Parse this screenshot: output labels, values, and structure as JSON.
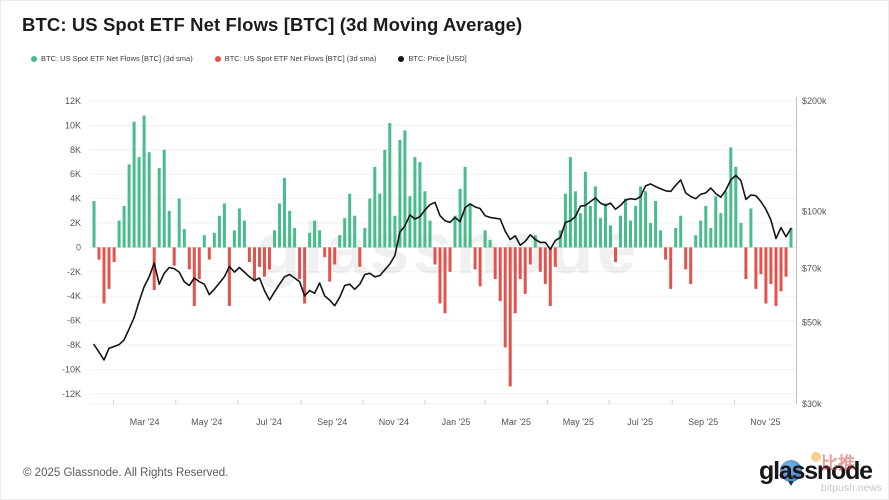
{
  "header": {
    "title": "BTC: US Spot ETF Net Flows [BTC] (3d Moving Average)",
    "legend": [
      {
        "label": "BTC: US Spot ETF Net Flows [BTC] (3d sma)",
        "color": "#48bd8b"
      },
      {
        "label": "BTC: US Spot ETF Net Flows [BTC] (3d sma)",
        "color": "#e2534d"
      },
      {
        "label": "BTC: Price [USD]",
        "color": "#141414"
      }
    ]
  },
  "watermark": "glassnode",
  "footer": {
    "copyright": "© 2025 Glassnode. All Rights Reserved.",
    "logo_text": "glassnode",
    "overlay_cn": "比推",
    "overlay_site": "bitpush.news"
  },
  "colors": {
    "flow_pos": "#48bd8b",
    "flow_neg": "#e2534d",
    "price_line": "#141414",
    "grid": "#f1f1f1",
    "zero_line": "#e2e2e2",
    "spine": "#bfbfbf",
    "axis_text": "#55555a"
  },
  "chart_data": {
    "type": "bar+line",
    "title": "BTC: US Spot ETF Net Flows [BTC] (3d Moving Average)",
    "series": [
      {
        "name": "BTC: US Spot ETF Net Flows [BTC] (3d sma) — positive",
        "type": "bar",
        "axis": "left",
        "unit": "K BTC"
      },
      {
        "name": "BTC: US Spot ETF Net Flows [BTC] (3d sma) — negative",
        "type": "bar",
        "axis": "left",
        "unit": "K BTC"
      },
      {
        "name": "BTC: Price [USD]",
        "type": "line",
        "axis": "right",
        "unit": "USD (thousands)",
        "scale": "log"
      }
    ],
    "x_ticks": [
      {
        "label": "Mar '24",
        "i": 10.1
      },
      {
        "label": "May '24",
        "i": 22.5
      },
      {
        "label": "Jul '24",
        "i": 34.9
      },
      {
        "label": "Sep '24",
        "i": 47.5
      },
      {
        "label": "Nov '24",
        "i": 59.8
      },
      {
        "label": "Jan '25",
        "i": 72.2
      },
      {
        "label": "Mar '25",
        "i": 84.2
      },
      {
        "label": "May '25",
        "i": 96.6
      },
      {
        "label": "Jul '25",
        "i": 108.9
      },
      {
        "label": "Sep '25",
        "i": 121.5
      },
      {
        "label": "Nov '25",
        "i": 133.9
      }
    ],
    "y_axis_left": [
      {
        "label": "12K",
        "value": 12
      },
      {
        "label": "10K",
        "value": 10
      },
      {
        "label": "8K",
        "value": 8
      },
      {
        "label": "6K",
        "value": 6
      },
      {
        "label": "4K",
        "value": 4
      },
      {
        "label": "2K",
        "value": 2
      },
      {
        "label": "0",
        "value": 0
      },
      {
        "label": "-2K",
        "value": -2
      },
      {
        "label": "-4K",
        "value": -4
      },
      {
        "label": "-6K",
        "value": -6
      },
      {
        "label": "-8K",
        "value": -8
      },
      {
        "label": "-10K",
        "value": -10
      },
      {
        "label": "-12K",
        "value": -12
      }
    ],
    "y_axis_right": [
      {
        "label": "$200k",
        "value": 200
      },
      {
        "label": "$100k",
        "value": 100
      },
      {
        "label": "$70k",
        "value": 70
      },
      {
        "label": "$50k",
        "value": 50
      },
      {
        "label": "$30k",
        "value": 30
      }
    ],
    "y_left_range_kbtc": [
      -12,
      12
    ],
    "y_right_scale": "log",
    "grid": "horizontal-only",
    "legend_position": "top-left",
    "flows_3d_sma_kbtc": [
      3.8,
      -1.0,
      -4.6,
      -3.4,
      -1.2,
      2.2,
      3.4,
      6.8,
      10.3,
      7.4,
      10.8,
      7.8,
      -3.5,
      6.5,
      8.0,
      3.0,
      -1.5,
      4.0,
      1.5,
      -1.8,
      -4.8,
      -2.6,
      1.0,
      -1.0,
      1.2,
      2.6,
      3.6,
      -4.8,
      1.4,
      3.2,
      2.2,
      -1.2,
      -2.8,
      -1.6,
      -2.4,
      -1.8,
      1.4,
      3.6,
      5.7,
      3.0,
      1.6,
      -2.6,
      -4.6,
      1.2,
      2.2,
      1.4,
      -0.8,
      -2.8,
      -1.4,
      1.0,
      2.4,
      4.4,
      2.6,
      -1.6,
      1.6,
      4.0,
      6.6,
      4.4,
      8.0,
      10.2,
      2.6,
      8.8,
      9.6,
      4.2,
      7.4,
      7.0,
      4.6,
      2.2,
      -1.4,
      -4.6,
      -5.4,
      -2.0,
      2.6,
      4.8,
      6.6,
      3.6,
      -1.8,
      -3.2,
      1.4,
      0.6,
      -2.6,
      -4.4,
      -8.2,
      -11.4,
      -5.4,
      -2.6,
      -3.8,
      -1.4,
      1.0,
      -2.0,
      -3.0,
      -4.8,
      -1.6,
      1.4,
      4.4,
      7.4,
      4.6,
      2.8,
      6.2,
      3.4,
      5.0,
      2.4,
      3.6,
      1.8,
      -1.2,
      2.6,
      4.0,
      2.2,
      3.4,
      5.0,
      4.6,
      2.0,
      3.8,
      1.4,
      -1.0,
      -3.4,
      1.6,
      2.6,
      -1.8,
      -3.0,
      1.0,
      2.2,
      3.4,
      1.6,
      4.2,
      2.8,
      4.6,
      8.2,
      6.6,
      2.0,
      -2.6,
      3.2,
      -3.4,
      -2.2,
      -4.6,
      -3.0,
      -4.8,
      -3.6,
      -2.4,
      1.6
    ],
    "price_usd_thousands": [
      43.5,
      41.5,
      39.5,
      42.5,
      43.0,
      43.5,
      44.8,
      48.0,
      51.5,
      57.0,
      62.5,
      66.5,
      72.5,
      63.5,
      68.0,
      70.5,
      70.0,
      68.5,
      64.5,
      63.0,
      66.0,
      64.5,
      63.5,
      59.5,
      61.5,
      64.0,
      66.5,
      71.0,
      68.5,
      70.5,
      68.5,
      66.5,
      65.0,
      66.0,
      61.0,
      57.5,
      60.5,
      63.5,
      66.5,
      67.5,
      66.0,
      64.5,
      59.0,
      61.0,
      60.0,
      64.0,
      59.0,
      57.5,
      55.5,
      58.5,
      63.0,
      63.5,
      61.5,
      63.5,
      67.5,
      68.0,
      66.5,
      67.0,
      69.5,
      72.0,
      76.0,
      88.0,
      91.5,
      98.0,
      95.5,
      97.0,
      101.0,
      104.5,
      106.0,
      97.5,
      94.5,
      93.5,
      96.5,
      94.0,
      102.5,
      105.0,
      103.0,
      102.0,
      97.5,
      96.5,
      96.0,
      95.5,
      88.5,
      84.0,
      86.0,
      81.0,
      83.0,
      86.5,
      84.0,
      82.5,
      82.5,
      79.0,
      83.5,
      85.0,
      93.5,
      94.5,
      97.0,
      103.5,
      104.0,
      106.5,
      109.0,
      105.5,
      104.0,
      105.5,
      101.5,
      104.0,
      107.5,
      108.5,
      108.0,
      110.0,
      117.5,
      119.0,
      117.0,
      115.5,
      114.0,
      113.5,
      118.0,
      122.0,
      112.5,
      110.0,
      108.5,
      111.5,
      112.5,
      116.0,
      112.0,
      109.5,
      114.5,
      122.0,
      125.5,
      121.5,
      108.0,
      111.0,
      110.5,
      106.5,
      101.5,
      95.0,
      84.5,
      90.5,
      85.5,
      90.0
    ]
  }
}
